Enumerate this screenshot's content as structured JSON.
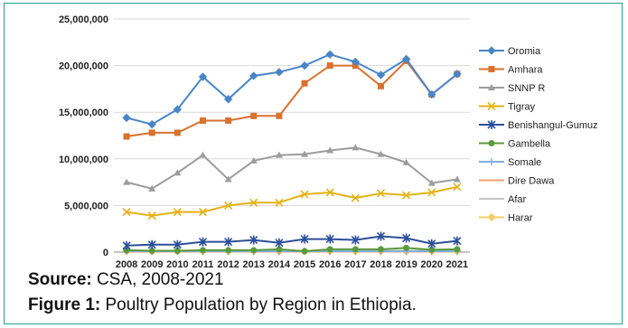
{
  "chart_data": {
    "type": "line",
    "title": "",
    "xlabel": "",
    "ylabel": "",
    "ylim": [
      0,
      25000000
    ],
    "yticks": [
      0,
      5000000,
      10000000,
      15000000,
      20000000,
      25000000
    ],
    "ytick_labels": [
      "0",
      "5,000,000",
      "10,000,000",
      "15,000,000",
      "20,000,000",
      "25,000,000"
    ],
    "grid": "horizontal",
    "legend_position": "right",
    "x": [
      "2008",
      "2009",
      "2010",
      "2011",
      "2012",
      "2013",
      "2014",
      "2015",
      "2016",
      "2017",
      "2018",
      "2019",
      "2020",
      "2021"
    ],
    "series": [
      {
        "name": "Oromia",
        "color": "#4a86c5",
        "marker": "diamond",
        "values": [
          14400000,
          13700000,
          15300000,
          18800000,
          16400000,
          18900000,
          19300000,
          20000000,
          21200000,
          20400000,
          19000000,
          20700000,
          16900000,
          19100000
        ]
      },
      {
        "name": "Amhara",
        "color": "#d9712f",
        "marker": "square",
        "values": [
          12400000,
          12800000,
          12800000,
          14100000,
          14100000,
          14600000,
          14600000,
          18100000,
          20000000,
          20000000,
          17800000,
          20500000,
          16900000,
          19100000
        ]
      },
      {
        "name": "SNNP R",
        "color": "#9c9c9c",
        "marker": "triangle",
        "values": [
          7500000,
          6800000,
          8500000,
          10400000,
          7800000,
          9800000,
          10400000,
          10500000,
          10900000,
          11200000,
          10500000,
          9600000,
          7400000,
          7800000
        ]
      },
      {
        "name": "Tigray",
        "color": "#e3b21a",
        "marker": "x",
        "values": [
          4300000,
          3900000,
          4300000,
          4300000,
          5000000,
          5300000,
          5300000,
          6200000,
          6400000,
          5800000,
          6300000,
          6100000,
          6400000,
          7000000
        ]
      },
      {
        "name": "Benishangul-Gumuz",
        "color": "#2d4f9a",
        "marker": "star",
        "values": [
          700000,
          800000,
          800000,
          1100000,
          1100000,
          1300000,
          1000000,
          1400000,
          1400000,
          1300000,
          1700000,
          1500000,
          900000,
          1200000
        ]
      },
      {
        "name": "Gambella",
        "color": "#5a9a3d",
        "marker": "circle",
        "values": [
          200000,
          150000,
          150000,
          200000,
          200000,
          200000,
          300000,
          100000,
          300000,
          300000,
          300000,
          450000,
          250000,
          300000
        ]
      },
      {
        "name": "Somale",
        "color": "#7fb0dc",
        "marker": "plus",
        "values": [
          100000,
          100000,
          100000,
          100000,
          100000,
          100000,
          100000,
          100000,
          100000,
          100000,
          100000,
          100000,
          100000,
          100000
        ]
      },
      {
        "name": "Dire Dawa",
        "color": "#f0a070",
        "marker": "dash",
        "values": [
          50000,
          50000,
          50000,
          50000,
          50000,
          50000,
          50000,
          50000,
          50000,
          50000,
          50000,
          50000,
          50000,
          50000
        ]
      },
      {
        "name": "Afar",
        "color": "#c4c4c4",
        "marker": "dash",
        "values": [
          150000,
          150000,
          150000,
          150000,
          150000,
          150000,
          150000,
          150000,
          150000,
          150000,
          150000,
          150000,
          150000,
          150000
        ]
      },
      {
        "name": "Harar",
        "color": "#f5cf6a",
        "marker": "diamond",
        "values": [
          80000,
          80000,
          80000,
          80000,
          80000,
          80000,
          80000,
          80000,
          80000,
          80000,
          80000,
          80000,
          80000,
          80000
        ]
      }
    ]
  },
  "captions": {
    "source_label": "Source:",
    "source_text": " CSA, 2008-2021",
    "figure_label": "Figure 1:",
    "figure_text": " Poultry Population by Region in Ethiopia."
  }
}
